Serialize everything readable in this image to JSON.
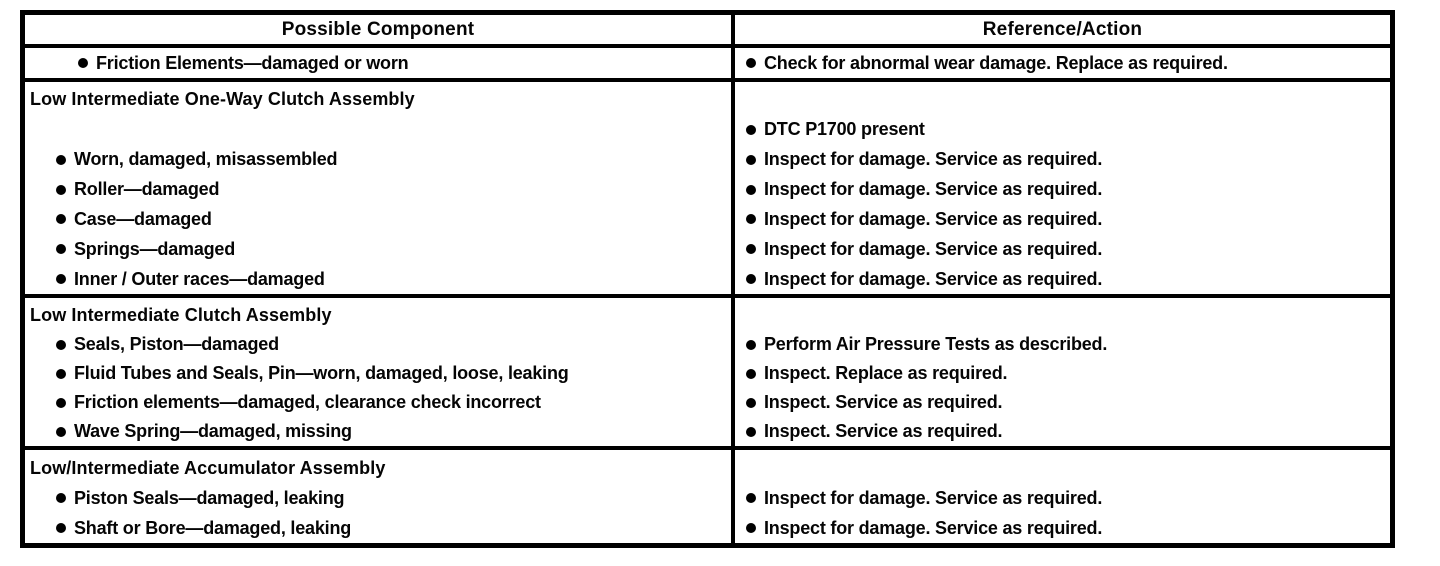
{
  "table": {
    "columns": {
      "component": "Possible Component",
      "action": "Reference/Action"
    },
    "friction_row": {
      "component": "Friction Elements—damaged or worn",
      "action": "Check for abnormal wear damage. Replace as required."
    },
    "oneway_clutch": {
      "heading": "Low Intermediate One-Way Clutch Assembly",
      "components": [
        "Worn, damaged, misassembled",
        "Roller—damaged",
        "Case—damaged",
        "Springs—damaged",
        "Inner / Outer races—damaged"
      ],
      "actions": [
        "DTC P1700 present",
        "Inspect for damage. Service as required.",
        "Inspect for damage. Service as required.",
        "Inspect for damage. Service as required.",
        "Inspect for damage. Service as required.",
        "Inspect for damage. Service as required."
      ]
    },
    "li_clutch": {
      "heading": "Low Intermediate Clutch Assembly",
      "components": [
        "Seals, Piston—damaged",
        "Fluid Tubes and Seals, Pin—worn, damaged, loose, leaking",
        "Friction elements—damaged, clearance check incorrect",
        "Wave Spring—damaged, missing"
      ],
      "actions": [
        "Perform Air Pressure Tests as described.",
        "Inspect. Replace as required.",
        "Inspect. Service as required.",
        "Inspect. Service as required."
      ]
    },
    "accumulator": {
      "heading": "Low/Intermediate Accumulator Assembly",
      "components": [
        "Piston Seals—damaged, leaking",
        "Shaft or Bore—damaged, leaking"
      ],
      "actions": [
        "Inspect for damage. Service as required.",
        "Inspect for damage. Service as required."
      ]
    },
    "ink_color": "#000000",
    "paper_color": "#ffffff"
  }
}
